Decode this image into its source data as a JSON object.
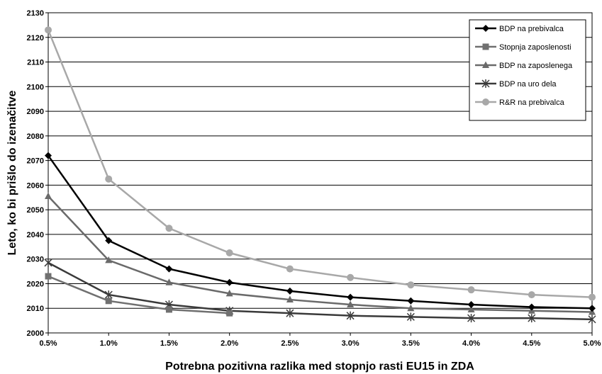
{
  "chart_data": {
    "type": "line",
    "xlabel": "Potrebna pozitivna razlika med stopnjo rasti EU15 in ZDA",
    "ylabel": "Leto, ko bi prišlo do izenačitve",
    "x": [
      "0.5%",
      "1.0%",
      "1.5%",
      "2.0%",
      "2.5%",
      "3.0%",
      "3.5%",
      "4.0%",
      "4.5%",
      "5.0%"
    ],
    "ylim": [
      2000,
      2130
    ],
    "yticks": [
      "2000",
      "2010",
      "2020",
      "2030",
      "2040",
      "2050",
      "2060",
      "2070",
      "2080",
      "2090",
      "2100",
      "2110",
      "2120",
      "2130"
    ],
    "grid": "horizontal",
    "legend_position": "top-right",
    "series": [
      {
        "name": "BDP na prebivalca",
        "marker": "diamond",
        "color": "#000000",
        "values": [
          2072,
          2037.5,
          2026,
          2020.5,
          2017,
          2014.5,
          2013,
          2011.5,
          2010.5,
          2010
        ]
      },
      {
        "name": "Stopnja zaposlenosti",
        "marker": "square",
        "color": "#707070",
        "values": [
          2023,
          2013,
          2009.5,
          2008,
          null,
          null,
          null,
          null,
          null,
          null
        ]
      },
      {
        "name": "BDP na zaposlenega",
        "marker": "triangle",
        "color": "#6a6a6a",
        "values": [
          2055.5,
          2029.5,
          2020.5,
          2016,
          2013.5,
          2011.5,
          2010,
          2009.5,
          2009,
          2008.5
        ]
      },
      {
        "name": "BDP na uro dela",
        "marker": "star",
        "color": "#3a3a3a",
        "values": [
          2028.5,
          2015.5,
          2011.5,
          2009,
          2008,
          2007,
          2006.5,
          2006,
          2006,
          2005.5
        ]
      },
      {
        "name": "R&R na prebivalca",
        "marker": "circle",
        "color": "#a8a8a8",
        "values": [
          2123,
          2062.5,
          2042.5,
          2032.5,
          2026,
          2022.5,
          2019.5,
          2017.5,
          2015.5,
          2014.5
        ]
      }
    ]
  }
}
